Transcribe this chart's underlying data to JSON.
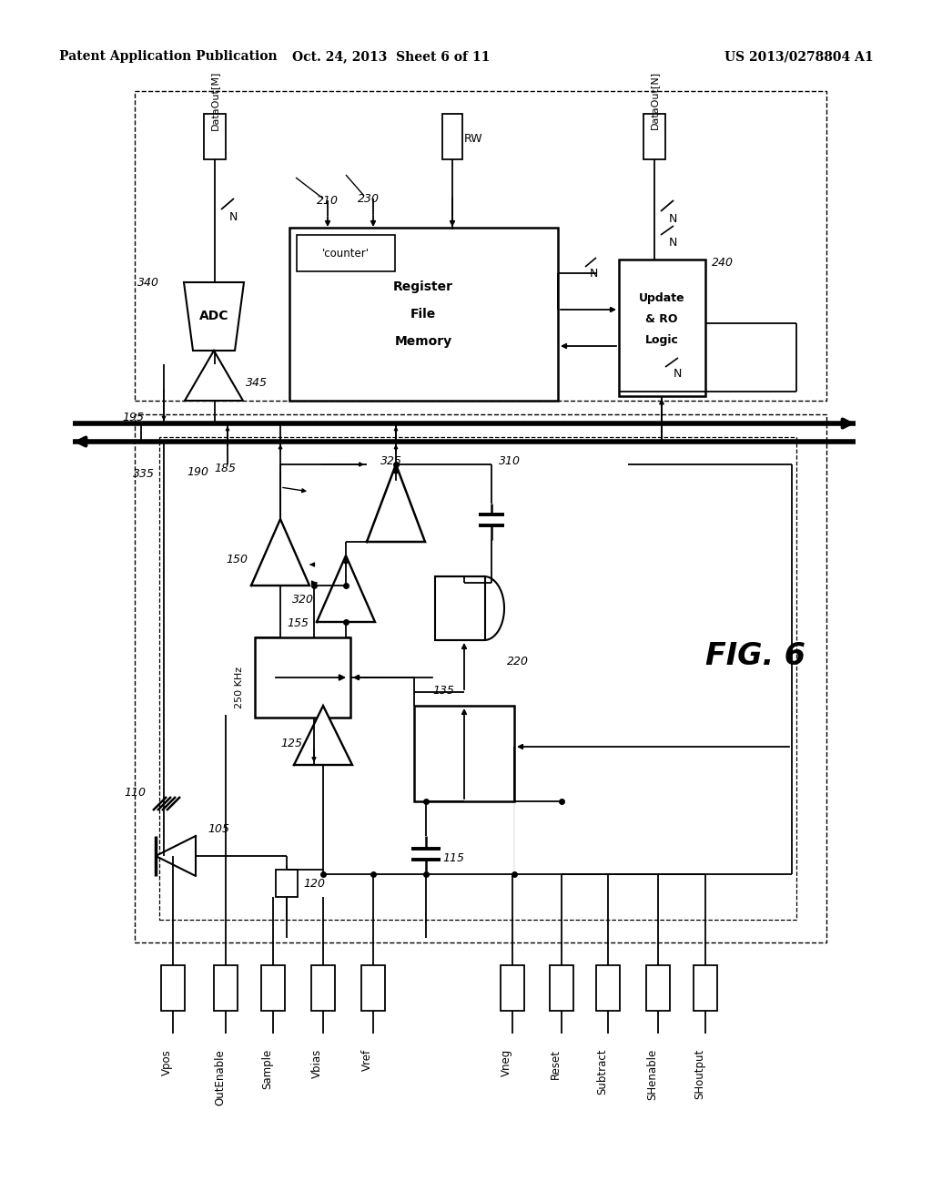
{
  "header_left": "Patent Application Publication",
  "header_center": "Oct. 24, 2013  Sheet 6 of 11",
  "header_right": "US 2013/0278804 A1",
  "bg_color": "#ffffff"
}
